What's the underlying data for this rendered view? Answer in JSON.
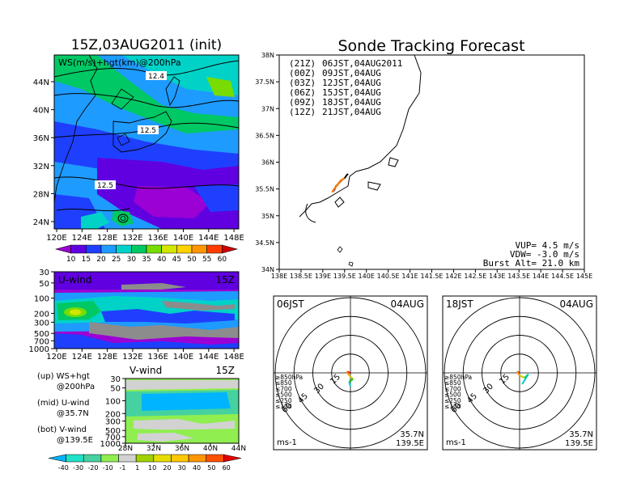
{
  "colors": {
    "ws_scale": [
      "#9b00d4",
      "#6000e0",
      "#1f3fff",
      "#1e9bff",
      "#00d2c8",
      "#00c864",
      "#78dc00",
      "#d2e600",
      "#ffd200",
      "#ff9600",
      "#ff3c00",
      "#d20000"
    ],
    "v_scale": [
      "#00b4ff",
      "#1ee1c8",
      "#46d2a0",
      "#90ee50",
      "#d2d2d2",
      "#a0d200",
      "#e6dc00",
      "#ffc800",
      "#ff9600",
      "#ff5000",
      "#e60000"
    ],
    "launch": [
      "#000000",
      "#c800c8",
      "#3232ff",
      "#00b400",
      "#ffb400",
      "#ff7800"
    ],
    "levels": [
      "#e60000",
      "#ff9600",
      "#c8c800",
      "#00c800",
      "#00c8c8",
      "#1e3cff"
    ],
    "grid": "#000000"
  },
  "left_top": {
    "title": "15Z,03AUG2011 (init)",
    "panel_label": "WS(m/s)+hgt(km)@200hPa",
    "contour_labels": [
      "12.4",
      "12.5",
      "12.5"
    ],
    "x_ticks": [
      "120E",
      "124E",
      "128E",
      "132E",
      "136E",
      "140E",
      "144E",
      "148E"
    ],
    "y_ticks": [
      "44N",
      "40N",
      "36N",
      "32N",
      "28N",
      "24N"
    ],
    "colorbar_ticks": [
      "10",
      "15",
      "20",
      "25",
      "30",
      "35",
      "40",
      "45",
      "50",
      "55",
      "60"
    ]
  },
  "left_mid": {
    "panel_label": "U-wind",
    "time_label": "15Z",
    "y_ticks": [
      "30",
      "50",
      "100",
      "200",
      "300",
      "500",
      "700",
      "1000"
    ],
    "x_ticks": [
      "120E",
      "124E",
      "128E",
      "132E",
      "136E",
      "140E",
      "144E",
      "148E"
    ]
  },
  "left_bot": {
    "panel_label": "V-wind",
    "time_label": "15Z",
    "y_ticks": [
      "30",
      "50",
      "100",
      "200",
      "300",
      "500",
      "700",
      "1000"
    ],
    "x_ticks": [
      "28N",
      "32N",
      "36N",
      "40N",
      "44N"
    ],
    "colorbar_ticks": [
      "-40",
      "-30",
      "-20",
      "-10",
      "-1",
      "1",
      "10",
      "20",
      "30",
      "40",
      "50",
      "60"
    ]
  },
  "legend_notes": [
    {
      "tag": "(up)",
      "line1": "WS+hgt",
      "line2": "@200hPa"
    },
    {
      "tag": "(mid)",
      "line1": "U-wind",
      "line2": "@35.7N"
    },
    {
      "tag": "(bot)",
      "line1": "V-wind",
      "line2": "@139.5E"
    }
  ],
  "forecast": {
    "title": "Sonde Tracking Forecast",
    "launches": [
      {
        "utc": "(21Z)",
        "jst": "06JST,04AUG2011"
      },
      {
        "utc": "(00Z)",
        "jst": "09JST,04AUG"
      },
      {
        "utc": "(03Z)",
        "jst": "12JST,04AUG"
      },
      {
        "utc": "(06Z)",
        "jst": "15JST,04AUG"
      },
      {
        "utc": "(09Z)",
        "jst": "18JST,04AUG"
      },
      {
        "utc": "(12Z)",
        "jst": "21JST,04AUG"
      }
    ],
    "x_ticks": [
      "138E",
      "138.5E",
      "139E",
      "139.5E",
      "140E",
      "140.5E",
      "141E",
      "141.5E",
      "142E",
      "142.5E",
      "143E",
      "143.5E",
      "144E",
      "144.5E",
      "145E"
    ],
    "y_ticks": [
      "38N",
      "37.5N",
      "37N",
      "36.5N",
      "36N",
      "35.5N",
      "35N",
      "34.5N",
      "34N"
    ],
    "vup": "VUP= 4.5 m/s",
    "vdw": "VDW= -3.0 m/s",
    "burst": "Burst Alt= 21.0 km"
  },
  "hodographs": [
    {
      "time": "06JST",
      "date": "04AUG",
      "ring_labels": [
        "15",
        "30",
        "45",
        "60"
      ],
      "unit": "ms-1",
      "lat": "35.7N",
      "lon": "139.5E",
      "levels": [
        "≥850hPa",
        "≤850",
        "≤700",
        "≤500",
        "≤250",
        "≤100"
      ]
    },
    {
      "time": "18JST",
      "date": "04AUG",
      "ring_labels": [
        "15",
        "30",
        "45",
        "60"
      ],
      "unit": "ms-1",
      "lat": "35.7N",
      "lon": "139.5E",
      "levels": [
        "≥850hPa",
        "≤850",
        "≤700",
        "≤500",
        "≤250",
        "≤100"
      ]
    }
  ],
  "chart_data": [
    {
      "type": "heatmap",
      "title": "15Z,03AUG2011 (init)",
      "field": "WS(m/s)+hgt(km)@200hPa",
      "xlim": [
        "120E",
        "149E"
      ],
      "ylim": [
        "22N",
        "47N"
      ],
      "contour_labels_km": [
        12.4,
        12.5,
        12.5
      ],
      "colorbar": [
        10,
        15,
        20,
        25,
        30,
        35,
        40,
        45,
        50,
        55,
        60
      ]
    },
    {
      "type": "heatmap",
      "field": "U-wind",
      "time": "15Z",
      "x_range": [
        "120E",
        "149E"
      ],
      "y_levels_hPa": [
        30,
        50,
        100,
        200,
        300,
        500,
        700,
        1000
      ]
    },
    {
      "type": "heatmap",
      "field": "V-wind",
      "time": "15Z",
      "x_range": [
        "28N",
        "44N"
      ],
      "y_levels_hPa": [
        30,
        50,
        100,
        200,
        300,
        500,
        700,
        1000
      ],
      "colorbar": [
        -40,
        -30,
        -20,
        -10,
        -1,
        1,
        10,
        20,
        30,
        40,
        50,
        60
      ]
    },
    {
      "type": "line",
      "title": "Sonde Tracking Forecast",
      "xlim": [
        138,
        145
      ],
      "ylim": [
        34,
        38
      ],
      "series": [
        {
          "name": "(21Z) 06JST,04AUG2011",
          "x": [
            139.5,
            139.45,
            139.38,
            139.3,
            139.26
          ],
          "y": [
            35.7,
            35.68,
            35.62,
            35.55,
            35.47
          ]
        },
        {
          "name": "(00Z) 09JST,04AUG",
          "x": [
            139.5,
            139.44,
            139.36,
            139.29,
            139.25
          ],
          "y": [
            35.7,
            35.67,
            35.6,
            35.53,
            35.46
          ]
        },
        {
          "name": "(03Z) 12JST,04AUG",
          "x": [
            139.5,
            139.43,
            139.35,
            139.28,
            139.24
          ],
          "y": [
            35.7,
            35.67,
            35.59,
            35.52,
            35.45
          ]
        },
        {
          "name": "(06Z) 15JST,04AUG",
          "x": [
            139.5,
            139.42,
            139.34,
            139.27,
            139.23
          ],
          "y": [
            35.7,
            35.66,
            35.58,
            35.51,
            35.45
          ]
        },
        {
          "name": "(09Z) 18JST,04AUG",
          "x": [
            139.5,
            139.41,
            139.33,
            139.26,
            139.22
          ],
          "y": [
            35.7,
            35.66,
            35.57,
            35.5,
            35.44
          ]
        },
        {
          "name": "(12Z) 21JST,04AUG",
          "x": [
            139.5,
            139.4,
            139.32,
            139.25,
            139.21
          ],
          "y": [
            35.7,
            35.65,
            35.56,
            35.49,
            35.44
          ]
        }
      ],
      "VUP_m_s": 4.5,
      "VDW_m_s": -3.0,
      "burst_alt_km": 21.0
    },
    {
      "type": "line",
      "title": "06JST 04AUG hodograph",
      "rings_m_s": [
        15,
        30,
        45,
        60
      ],
      "series": [
        {
          "name": "wind",
          "u": [
            0,
            -3,
            -1,
            2,
            -1,
            0
          ],
          "v": [
            0,
            1,
            -2,
            -5,
            -7,
            -11
          ]
        }
      ]
    },
    {
      "type": "line",
      "title": "18JST 04AUG hodograph",
      "rings_m_s": [
        15,
        30,
        45,
        60
      ],
      "series": [
        {
          "name": "wind",
          "u": [
            0,
            -2,
            0,
            4,
            7,
            2
          ],
          "v": [
            0,
            1,
            -2,
            -4,
            -1,
            -9
          ]
        }
      ]
    }
  ]
}
